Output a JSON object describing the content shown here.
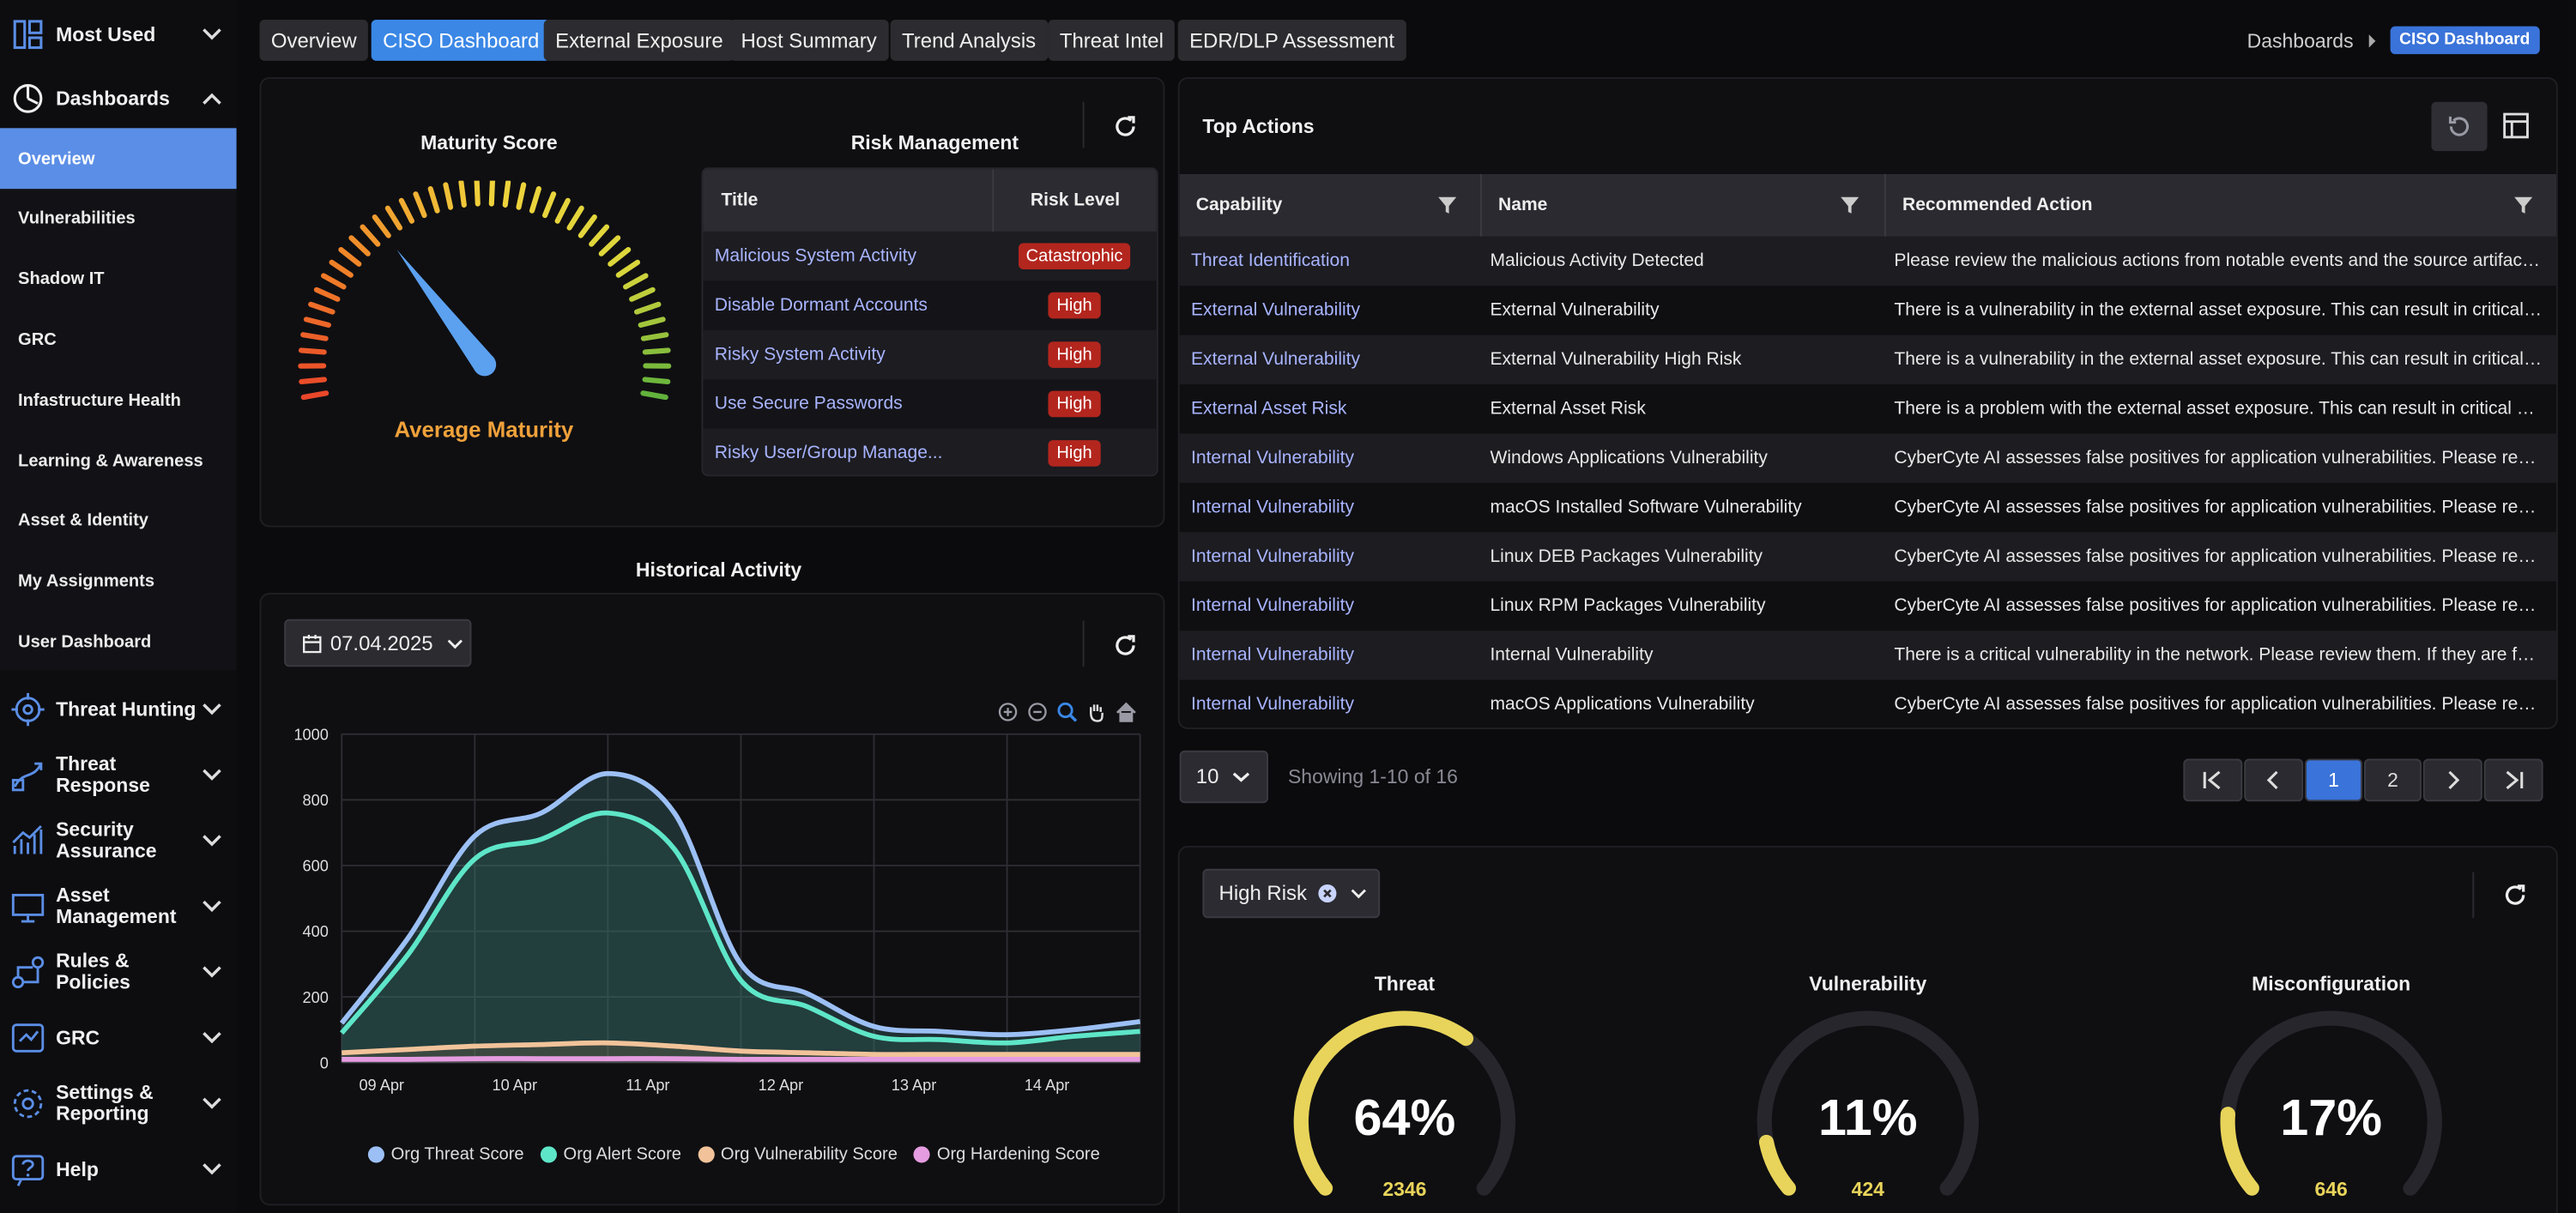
{
  "sidebar": {
    "most_used": "Most Used",
    "dashboards": "Dashboards",
    "sub_items": [
      "Overview",
      "Vulnerabilities",
      "Shadow IT",
      "GRC",
      "Infastructure Health",
      "Learning & Awareness",
      "Asset & Identity",
      "My Assignments",
      "User Dashboard"
    ],
    "sections": [
      {
        "label": "Threat Hunting",
        "icon": "threat-hunting-icon"
      },
      {
        "label": "Threat Response",
        "icon": "threat-response-icon"
      },
      {
        "label": "Security Assurance",
        "icon": "security-assurance-icon"
      },
      {
        "label": "Asset Management",
        "icon": "asset-management-icon"
      },
      {
        "label": "Rules & Policies",
        "icon": "rules-policies-icon"
      },
      {
        "label": "GRC",
        "icon": "grc-icon"
      },
      {
        "label": "Settings & Reporting",
        "icon": "settings-reporting-icon"
      },
      {
        "label": "Help",
        "icon": "help-icon"
      }
    ]
  },
  "tabs": [
    "Overview",
    "CISO Dashboard",
    "External Exposure",
    "Host Summary",
    "Trend Analysis",
    "Threat Intel",
    "EDR/DLP Assessment"
  ],
  "breadcrumb": {
    "parent": "Dashboards",
    "current": "CISO Dashboard"
  },
  "maturity": {
    "title": "Maturity Score",
    "label": "Average Maturity",
    "level_fraction": 0.33
  },
  "risk": {
    "title": "Risk Management",
    "col_title": "Title",
    "col_level": "Risk Level",
    "rows": [
      {
        "title": "Malicious System Activity",
        "level": "Catastrophic"
      },
      {
        "title": "Disable Dormant Accounts",
        "level": "High"
      },
      {
        "title": "Risky System Activity",
        "level": "High"
      },
      {
        "title": "Use Secure Passwords",
        "level": "High"
      },
      {
        "title": "Risky User/Group Manage...",
        "level": "High"
      }
    ]
  },
  "history": {
    "title": "Historical Activity",
    "date": "07.04.2025"
  },
  "chart_data": {
    "type": "area",
    "title": "Historical Activity",
    "categories": [
      "09 Apr",
      "10 Apr",
      "11 Apr",
      "12 Apr",
      "13 Apr",
      "14 Apr"
    ],
    "ylim": [
      0,
      1000
    ],
    "yticks": [
      0,
      200,
      400,
      600,
      800,
      1000
    ],
    "x": [
      0,
      0.5,
      1,
      1.5,
      2,
      2.5,
      3,
      3.5,
      4,
      4.5,
      5,
      5.5,
      6
    ],
    "series": [
      {
        "name": "Org Threat Score",
        "color": "#9cc0f5",
        "values": [
          120,
          380,
          690,
          760,
          880,
          760,
          300,
          210,
          110,
          95,
          85,
          100,
          125
        ]
      },
      {
        "name": "Org Alert Score",
        "color": "#5ee6c8",
        "values": [
          90,
          330,
          620,
          680,
          760,
          650,
          250,
          170,
          80,
          70,
          60,
          80,
          95
        ]
      },
      {
        "name": "Org Vulnerability Score",
        "color": "#f2c39a",
        "values": [
          30,
          40,
          50,
          55,
          60,
          50,
          35,
          30,
          25,
          25,
          25,
          25,
          25
        ]
      },
      {
        "name": "Org Hardening Score",
        "color": "#e59ce0",
        "values": [
          10,
          10,
          12,
          12,
          12,
          12,
          10,
          10,
          10,
          10,
          10,
          10,
          10
        ]
      }
    ]
  },
  "actions": {
    "title": "Top Actions",
    "headers": [
      "Capability",
      "Name",
      "Recommended Action"
    ],
    "rows": [
      [
        "Threat Identification",
        "Malicious Activity Detected",
        "Please review the malicious actions from notable events and the source artifact. If it is a false positive, please mark it."
      ],
      [
        "External Vulnerability",
        "External Vulnerability",
        "There is a vulnerability in the external asset exposure. This can result in critical exploitation of your assets."
      ],
      [
        "External Vulnerability",
        "External Vulnerability High Risk",
        "There is a vulnerability in the external asset exposure. This can result in critical exploitation of your assets."
      ],
      [
        "External Asset Risk",
        "External Asset Risk",
        "There is a problem with the external asset exposure. This can result in critical exploitation of your assets."
      ],
      [
        "Internal Vulnerability",
        "Windows Applications Vulnerability",
        "CyberCyte AI assesses false positives for application vulnerabilities. Please review them."
      ],
      [
        "Internal Vulnerability",
        "macOS Installed Software Vulnerability",
        "CyberCyte AI assesses false positives for application vulnerabilities. Please review them."
      ],
      [
        "Internal Vulnerability",
        "Linux DEB Packages Vulnerability",
        "CyberCyte AI assesses false positives for application vulnerabilities. Please review them."
      ],
      [
        "Internal Vulnerability",
        "Linux RPM Packages Vulnerability",
        "CyberCyte AI assesses false positives for application vulnerabilities. Please review them."
      ],
      [
        "Internal Vulnerability",
        "Internal Vulnerability",
        "There is a critical vulnerability in the network. Please review them. If they are false positives, mark them."
      ],
      [
        "Internal Vulnerability",
        "macOS Applications Vulnerability",
        "CyberCyte AI assesses false positives for application vulnerabilities. Please review them."
      ]
    ],
    "page_size": "10",
    "showing": "Showing 1-10 of 16",
    "pages": [
      "1",
      "2"
    ]
  },
  "risk_filter": {
    "chip": "High Risk"
  },
  "gauges": [
    {
      "title": "Threat",
      "percent": "64%",
      "count": "2346",
      "fraction": 0.64
    },
    {
      "title": "Vulnerability",
      "percent": "11%",
      "count": "424",
      "fraction": 0.11
    },
    {
      "title": "Misconfiguration",
      "percent": "17%",
      "count": "646",
      "fraction": 0.17
    }
  ],
  "colors": {
    "accent": "#3a87e6",
    "gauge_fill": "#e8d45a",
    "badge": "#b3261e",
    "link": "#a8b4ff"
  }
}
